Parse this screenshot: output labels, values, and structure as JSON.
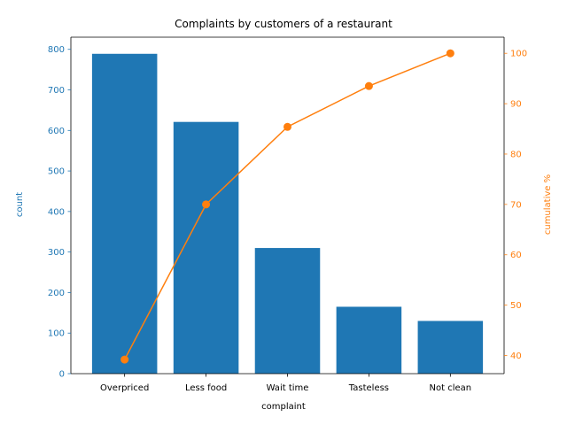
{
  "chart_data": {
    "type": "bar",
    "title": "Complaints by customers of a restaurant",
    "xlabel": "complaint",
    "ylabel": "count",
    "y2label": "cumulative %",
    "categories": [
      "Overpriced",
      "Less food",
      "Wait time",
      "Tasteless",
      "Not clean"
    ],
    "series": [
      {
        "type": "bar",
        "axis": "left",
        "values": [
          789,
          621,
          310,
          165,
          130
        ],
        "color": "#1f77b4"
      },
      {
        "type": "line",
        "axis": "right",
        "marker": "circle",
        "values": [
          39.2,
          70.0,
          85.4,
          93.5,
          100.0
        ],
        "color": "#ff7f0e"
      }
    ],
    "ylim": [
      0,
      830
    ],
    "y2lim": [
      36.4,
      103.2
    ],
    "yticks": [
      0,
      100,
      200,
      300,
      400,
      500,
      600,
      700,
      800
    ],
    "y2ticks": [
      40,
      50,
      60,
      70,
      80,
      90,
      100
    ],
    "grid": false,
    "legend": "none"
  }
}
